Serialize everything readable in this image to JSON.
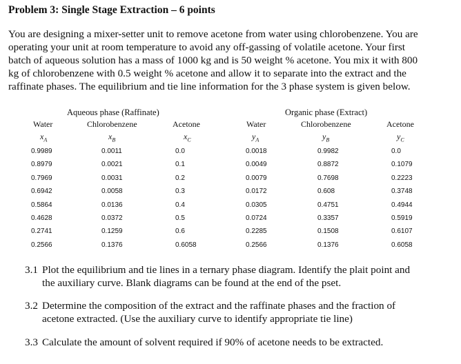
{
  "title": "Problem 3: Single Stage Extraction – 6 points",
  "intro": [
    "You are designing a mixer-setter unit to remove acetone from water using chlorobenzene. You are",
    "operating your unit at room temperature to avoid any off-gassing of volatile acetone. Your first",
    "batch of aqueous solution has a mass of 1000 kg and is 50 weight % acetone. You mix it with 800",
    "kg of chlorobenzene with 0.5 weight % acetone and allow it to separate into the extract and the",
    "raffinate phases. The equilibrium and tie line information for the 3 phase system is given below."
  ],
  "table": {
    "group_raffinate": "Aqueous phase (Raffinate)",
    "group_extract": "Organic phase (Extract)",
    "columns": [
      {
        "name": "Water",
        "symbol": "xA"
      },
      {
        "name": "Chlorobenzene",
        "symbol": "xB"
      },
      {
        "name": "Acetone",
        "symbol": "xC"
      },
      {
        "name": "Water",
        "symbol": "yA"
      },
      {
        "name": "Chlorobenzene",
        "symbol": "yB"
      },
      {
        "name": "Acetone",
        "symbol": "yC"
      }
    ],
    "rows": [
      [
        "0.9989",
        "0.0011",
        "0.0",
        "0.0018",
        "0.9982",
        "0.0"
      ],
      [
        "0.8979",
        "0.0021",
        "0.1",
        "0.0049",
        "0.8872",
        "0.1079"
      ],
      [
        "0.7969",
        "0.0031",
        "0.2",
        "0.0079",
        "0.7698",
        "0.2223"
      ],
      [
        "0.6942",
        "0.0058",
        "0.3",
        "0.0172",
        "0.608",
        "0.3748"
      ],
      [
        "0.5864",
        "0.0136",
        "0.4",
        "0.0305",
        "0.4751",
        "0.4944"
      ],
      [
        "0.4628",
        "0.0372",
        "0.5",
        "0.0724",
        "0.3357",
        "0.5919"
      ],
      [
        "0.2741",
        "0.1259",
        "0.6",
        "0.2285",
        "0.1508",
        "0.6107"
      ],
      [
        "0.2566",
        "0.1376",
        "0.6058",
        "0.2566",
        "0.1376",
        "0.6058"
      ]
    ]
  },
  "questions": [
    {
      "num": "3.1",
      "lines": [
        "Plot the equilibrium and tie lines in a ternary phase diagram. Identify the plait point and",
        "the auxiliary curve. Blank diagrams can be found at the end of the pset."
      ]
    },
    {
      "num": "3.2",
      "lines": [
        "Determine the composition of the extract and the raffinate phases and the fraction of",
        "acetone extracted. (Use the auxiliary curve to identify appropriate tie line)"
      ]
    },
    {
      "num": "3.3",
      "lines": [
        "Calculate the amount of solvent required if 90% of acetone needs to be extracted."
      ]
    }
  ]
}
